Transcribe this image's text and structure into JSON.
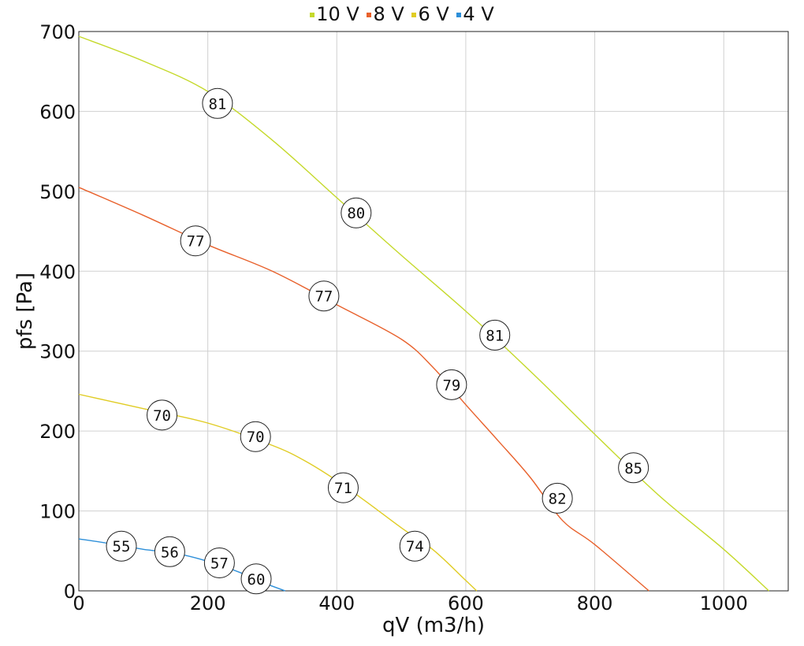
{
  "chart_data": {
    "type": "line",
    "xlabel": "qV (m3/h)",
    "ylabel": "pfs [Pa]",
    "xlim": [
      0,
      1100
    ],
    "ylim": [
      0,
      700
    ],
    "x_ticks": [
      0,
      200,
      400,
      600,
      800,
      1000
    ],
    "y_ticks": [
      0,
      100,
      200,
      300,
      400,
      500,
      600,
      700
    ],
    "grid": true,
    "legend_position": "top-center",
    "series": [
      {
        "name": "10 V",
        "color": "#c5d92b",
        "points": [
          [
            0,
            694
          ],
          [
            100,
            663
          ],
          [
            200,
            625
          ],
          [
            300,
            564
          ],
          [
            400,
            492
          ],
          [
            500,
            420
          ],
          [
            600,
            350
          ],
          [
            700,
            275
          ],
          [
            800,
            196
          ],
          [
            900,
            119
          ],
          [
            1000,
            52
          ],
          [
            1070,
            0
          ]
        ],
        "labels": [
          {
            "x": 215,
            "y": 610,
            "text": "81"
          },
          {
            "x": 430,
            "y": 473,
            "text": "80"
          },
          {
            "x": 645,
            "y": 320,
            "text": "81"
          },
          {
            "x": 860,
            "y": 154,
            "text": "85"
          }
        ]
      },
      {
        "name": "8 V",
        "color": "#e8612c",
        "points": [
          [
            0,
            505
          ],
          [
            100,
            470
          ],
          [
            200,
            433
          ],
          [
            300,
            400
          ],
          [
            400,
            358
          ],
          [
            500,
            315
          ],
          [
            550,
            279
          ],
          [
            600,
            233
          ],
          [
            650,
            188
          ],
          [
            700,
            142
          ],
          [
            750,
            88
          ],
          [
            800,
            58
          ],
          [
            884,
            0
          ]
        ],
        "labels": [
          {
            "x": 181,
            "y": 438,
            "text": "77"
          },
          {
            "x": 380,
            "y": 369,
            "text": "77"
          },
          {
            "x": 578,
            "y": 258,
            "text": "79"
          },
          {
            "x": 742,
            "y": 116,
            "text": "82"
          }
        ]
      },
      {
        "name": "6 V",
        "color": "#e0cc24",
        "points": [
          [
            0,
            246
          ],
          [
            100,
            228
          ],
          [
            200,
            210
          ],
          [
            300,
            182
          ],
          [
            350,
            163
          ],
          [
            400,
            138
          ],
          [
            450,
            109
          ],
          [
            500,
            79
          ],
          [
            550,
            51
          ],
          [
            600,
            13
          ],
          [
            617,
            0
          ]
        ],
        "labels": [
          {
            "x": 129,
            "y": 220,
            "text": "70"
          },
          {
            "x": 274,
            "y": 193,
            "text": "70"
          },
          {
            "x": 410,
            "y": 129,
            "text": "71"
          },
          {
            "x": 521,
            "y": 56,
            "text": "74"
          }
        ]
      },
      {
        "name": "4 V",
        "color": "#2d8fd9",
        "points": [
          [
            0,
            65
          ],
          [
            50,
            59
          ],
          [
            100,
            52
          ],
          [
            150,
            47
          ],
          [
            200,
            37
          ],
          [
            250,
            23
          ],
          [
            280,
            12
          ],
          [
            320,
            0
          ]
        ],
        "labels": [
          {
            "x": 66,
            "y": 56,
            "text": "55"
          },
          {
            "x": 141,
            "y": 49,
            "text": "56"
          },
          {
            "x": 218,
            "y": 35,
            "text": "57"
          },
          {
            "x": 275,
            "y": 15,
            "text": "60"
          }
        ]
      }
    ]
  }
}
